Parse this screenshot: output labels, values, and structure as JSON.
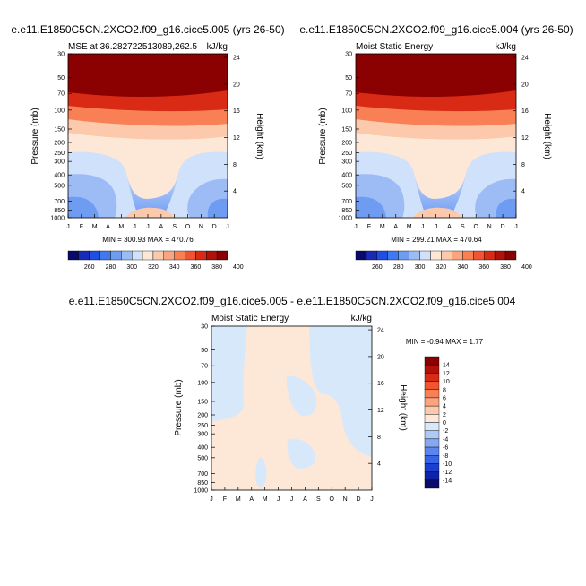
{
  "chart_data": [
    {
      "type": "heatmap",
      "title": "e.e11.E1850C5CN.2XCO2.f09_g16.cice5.005 (yrs 26-50)",
      "subtitle_left": "MSE at 36.2827225130​89,262.5",
      "subtitle_right": "kJ/kg",
      "xlabel": "",
      "ylabel": "Pressure (mb)",
      "ylabel_right": "Height (km)",
      "months": [
        "J",
        "F",
        "M",
        "A",
        "M",
        "J",
        "J",
        "A",
        "S",
        "O",
        "N",
        "D",
        "J"
      ],
      "pressure_ticks": [
        "30",
        "50",
        "70",
        "100",
        "150",
        "200",
        "250",
        "300",
        "400",
        "500",
        "700",
        "850",
        "1000"
      ],
      "height_ticks": [
        "24",
        "20",
        "16",
        "12",
        "8",
        "4"
      ],
      "stats": "MIN = 300.93  MAX = 470.76",
      "colorbar_labels": [
        "260",
        "280",
        "300",
        "320",
        "340",
        "360",
        "380",
        "400"
      ],
      "ylim": [
        1000,
        30
      ]
    },
    {
      "type": "heatmap",
      "title": "e.e11.E1850C5CN.2XCO2.f09_g16.cice5.004 (yrs 26-50)",
      "subtitle_left": "Moist Static Energy",
      "subtitle_right": "kJ/kg",
      "xlabel": "",
      "ylabel": "Pressure (mb)",
      "ylabel_right": "Height (km)",
      "months": [
        "J",
        "F",
        "M",
        "A",
        "M",
        "J",
        "J",
        "A",
        "S",
        "O",
        "N",
        "D",
        "J"
      ],
      "pressure_ticks": [
        "30",
        "50",
        "70",
        "100",
        "150",
        "200",
        "250",
        "300",
        "400",
        "500",
        "700",
        "850",
        "1000"
      ],
      "height_ticks": [
        "24",
        "20",
        "16",
        "12",
        "8",
        "4"
      ],
      "stats": "MIN = 299.21  MAX = 470.64",
      "colorbar_labels": [
        "260",
        "280",
        "300",
        "320",
        "340",
        "360",
        "380",
        "400"
      ],
      "ylim": [
        1000,
        30
      ]
    },
    {
      "type": "heatmap",
      "title": "e.e11.E1850C5CN.2XCO2.f09_g16.cice5.005 - e.e11.E1850C5CN.2XCO2.f09_g16.cice5.004",
      "subtitle_left": "Moist Static Energy",
      "subtitle_right": "kJ/kg",
      "xlabel": "",
      "ylabel": "Pressure (mb)",
      "ylabel_right": "Height (km)",
      "months": [
        "J",
        "F",
        "M",
        "A",
        "M",
        "J",
        "J",
        "A",
        "S",
        "O",
        "N",
        "D",
        "J"
      ],
      "pressure_ticks": [
        "30",
        "50",
        "70",
        "100",
        "150",
        "200",
        "250",
        "300",
        "400",
        "500",
        "700",
        "850",
        "1000"
      ],
      "height_ticks": [
        "24",
        "20",
        "16",
        "12",
        "8",
        "4"
      ],
      "stats": "MIN =  -0.94  MAX =   1.77",
      "colorbar_labels": [
        "14",
        "12",
        "10",
        "8",
        "6",
        "4",
        "2",
        "0",
        "-2",
        "-4",
        "-6",
        "-8",
        "-10",
        "-12",
        "-14"
      ],
      "ylim": [
        1000,
        30
      ]
    }
  ],
  "colors": {
    "mse_ramp": [
      "#0a0a6a",
      "#1a2ab8",
      "#1f4fe0",
      "#3f78f0",
      "#6e9cf2",
      "#9dbcf6",
      "#cfe1fb",
      "#fde8d8",
      "#fcc9ad",
      "#fba57f",
      "#f97f55",
      "#f0552f",
      "#d92a16",
      "#b0110b",
      "#8b0000"
    ],
    "diff_ramp": [
      "#8b0000",
      "#b0110b",
      "#d92a16",
      "#f0552f",
      "#f97f55",
      "#fba57f",
      "#fcc9ad",
      "#fde8d8",
      "#d8e8fb",
      "#aec9f6",
      "#84a8f2",
      "#5c86ee",
      "#3763e6",
      "#1c3fd0",
      "#0e23a8",
      "#0a0a6a"
    ]
  }
}
